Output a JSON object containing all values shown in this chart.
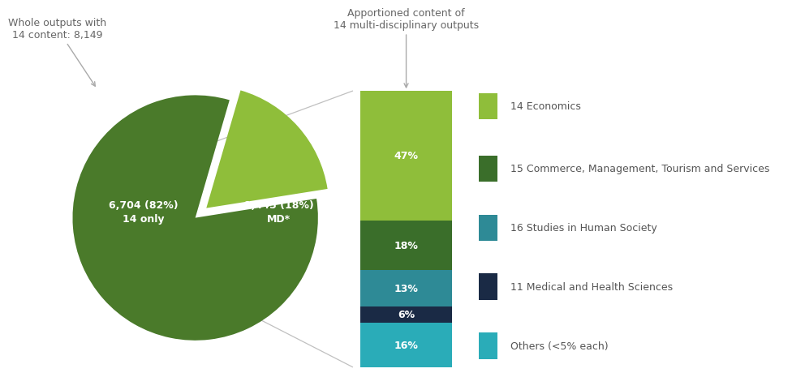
{
  "pie_values": [
    82,
    18
  ],
  "pie_colors": [
    "#4a7a2a",
    "#8fbe3a"
  ],
  "pie_labels_text": [
    "6,704 (82%)\n14 only",
    "1,445 (18%)\nMD*"
  ],
  "pie_explode": [
    0,
    0.12
  ],
  "bar_values": [
    47,
    18,
    13,
    6,
    16
  ],
  "bar_colors": [
    "#8fbe3a",
    "#3a6e2a",
    "#2e8a96",
    "#1a2a45",
    "#2aacb8"
  ],
  "bar_labels": [
    "47%",
    "18%",
    "13%",
    "6%",
    "16%"
  ],
  "legend_labels": [
    "14 Economics",
    "15 Commerce, Management, Tourism and Services",
    "16 Studies in Human Society",
    "11 Medical and Health Sciences",
    "Others (<5% each)"
  ],
  "legend_colors": [
    "#8fbe3a",
    "#3a6e2a",
    "#2e8a96",
    "#1a2a45",
    "#2aacb8"
  ],
  "pie_annotation": "Whole outputs with\n14 content: 8,149",
  "bar_annotation": "Apportioned content of\n14 multi-disciplinary outputs",
  "bg_color": "#ffffff",
  "text_color": "#666666",
  "font_size": 9
}
